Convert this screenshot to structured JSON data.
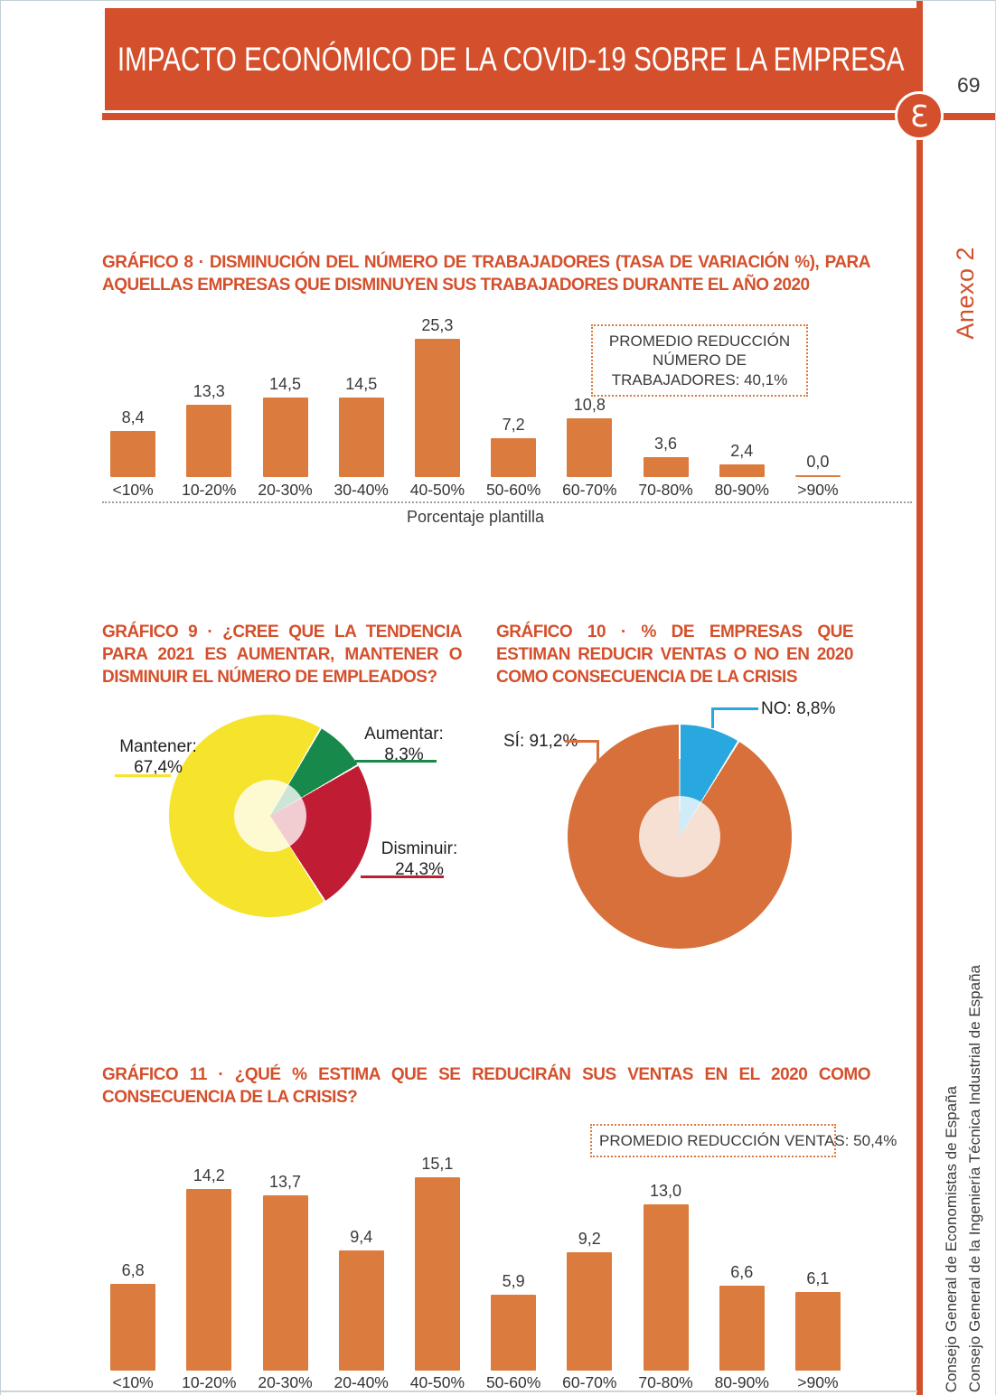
{
  "page": {
    "header_title": "IMPACTO ECONÓMICO DE LA COVID-19 SOBRE LA EMPRESA",
    "page_number": "69",
    "annex_label": "Anexo 2",
    "logo_glyph": "Ɛ",
    "accent_color": "#d4502c",
    "credits": {
      "line1": "Consejo General de Economistas de España",
      "line2": "Consejo General de la Ingeniería Técnica Industrial de España"
    }
  },
  "chart_data": [
    {
      "type": "bar",
      "id": "grafico-8",
      "title": "GRÁFICO 8 · DISMINUCIÓN DEL NÚMERO DE TRABAJADORES (TASA DE VARIACIÓN %), PARA AQUELLAS EM­PRESAS QUE DISMINUYEN SUS TRABAJADORES DURANTE EL AÑO 2020",
      "note": "PROMEDIO REDUCCIÓN NÚMERO DE TRABAJADORES: 40,1%",
      "categories": [
        "<10%",
        "10-20%",
        "20-30%",
        "30-40%",
        "40-50%",
        "50-60%",
        "60-70%",
        "70-80%",
        "80-90%",
        ">90%"
      ],
      "values": [
        8.4,
        13.3,
        14.5,
        14.5,
        25.3,
        7.2,
        10.8,
        3.6,
        2.4,
        0.0
      ],
      "value_labels": [
        "8,4",
        "13,3",
        "14,5",
        "14,5",
        "25,3",
        "7,2",
        "10,8",
        "3,6",
        "2,4",
        "0,0"
      ],
      "xlabel": "Porcentaje plantilla",
      "bar_color": "#dc7b3e",
      "ylim": [
        0,
        26
      ],
      "grid": false,
      "legend": false
    },
    {
      "type": "pie",
      "id": "grafico-9",
      "title": "GRÁFICO 9 · ¿CREE QUE LA TENDENCIA PARA 2021 ES AUMENTAR, MANTENER O DISMINUIR EL NÚ­MERO DE EMPLEADOS?",
      "rotation": 30,
      "slices": [
        {
          "name": "Aumentar",
          "label": "Aumentar:",
          "pct": "8,3%",
          "value": 8.3,
          "color": "#17894a"
        },
        {
          "name": "Disminuir",
          "label": "Disminuir:",
          "pct": "24,3%",
          "value": 24.3,
          "color": "#c01d35"
        },
        {
          "name": "Mantener",
          "label": "Mantener:",
          "pct": "67,4%",
          "value": 67.4,
          "color": "#f5e32c"
        }
      ],
      "legend": false
    },
    {
      "type": "pie",
      "id": "grafico-10",
      "title": "GRÁFICO 10 · % DE EMPRESAS QUE ESTIMAN REDU­CIR VENTAS O NO EN 2020 COMO CONSECUENCIA DE LA CRISIS",
      "rotation": 0,
      "slices": [
        {
          "name": "NO",
          "label": "NO:",
          "pct": "8,8%",
          "value": 8.8,
          "color": "#29a8df"
        },
        {
          "name": "SÍ",
          "label": "SÍ:",
          "pct": "91,2%",
          "value": 91.2,
          "color": "#d7703a"
        }
      ],
      "legend": false
    },
    {
      "type": "bar",
      "id": "grafico-11",
      "title": "GRÁFICO 11 · ¿QUÉ % ESTIMA QUE SE REDUCIRÁN SUS VENTAS EN EL 2020 COMO CONSECUENCIA DE LA CRI­SIS?",
      "note": "PROMEDIO REDUCCIÓN VENTAS: 50,4%",
      "categories": [
        "<10%",
        "10-20%",
        "20-30%",
        "20-40%",
        "40-50%",
        "50-60%",
        "60-70%",
        "70-80%",
        "80-90%",
        ">90%"
      ],
      "values": [
        6.8,
        14.2,
        13.7,
        9.4,
        15.1,
        5.9,
        9.2,
        13.0,
        6.6,
        6.1
      ],
      "value_labels": [
        "6,8",
        "14,2",
        "13,7",
        "9,4",
        "15,1",
        "5,9",
        "9,2",
        "13,0",
        "6,6",
        "6,1"
      ],
      "xlabel": "",
      "bar_color": "#dc7b3e",
      "ylim": [
        0,
        16
      ],
      "grid": false,
      "legend": false
    }
  ]
}
